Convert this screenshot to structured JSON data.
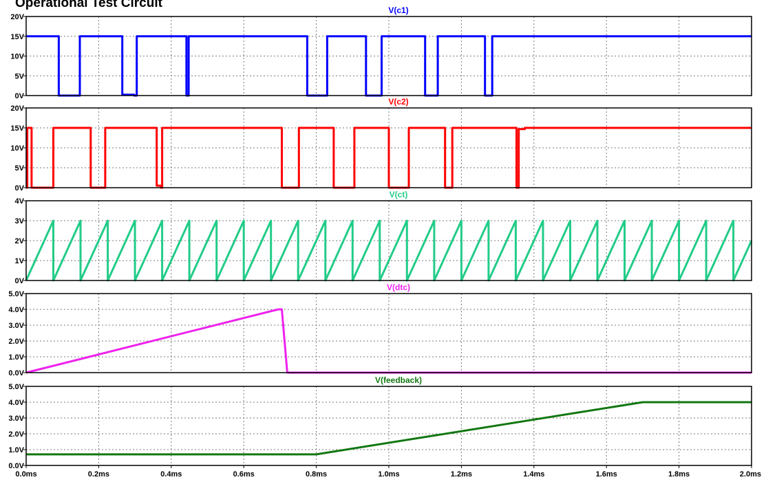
{
  "title": "Operational Test Circuit",
  "colors": {
    "c1": "#0000ff",
    "c2": "#ff0000",
    "ct": "#22cc88",
    "dtc": "#ee22ee",
    "feedback": "#117711"
  },
  "chart_data": [
    {
      "type": "line",
      "id": "c1",
      "title": "V(c1)",
      "ylim": [
        0,
        20
      ],
      "yticks": [
        {
          "v": 0,
          "label": "0V"
        },
        {
          "v": 5,
          "label": "5V"
        },
        {
          "v": 10,
          "label": "10V"
        },
        {
          "v": 15,
          "label": "15V"
        },
        {
          "v": 20,
          "label": "20V"
        }
      ],
      "series": [
        {
          "color": "#0000ff",
          "points": [
            [
              0,
              15
            ],
            [
              0.09,
              15
            ],
            [
              0.09,
              0
            ],
            [
              0.148,
              0
            ],
            [
              0.148,
              15
            ],
            [
              0.265,
              15
            ],
            [
              0.265,
              0.2
            ],
            [
              0.298,
              0.2
            ],
            [
              0.298,
              0
            ],
            [
              0.305,
              0
            ],
            [
              0.305,
              15
            ],
            [
              0.442,
              15
            ],
            [
              0.442,
              0
            ],
            [
              0.448,
              0
            ],
            [
              0.448,
              15
            ],
            [
              0.775,
              15
            ],
            [
              0.775,
              0
            ],
            [
              0.83,
              0
            ],
            [
              0.83,
              15
            ],
            [
              0.937,
              15
            ],
            [
              0.937,
              0
            ],
            [
              0.98,
              0
            ],
            [
              0.98,
              15
            ],
            [
              1.1,
              15
            ],
            [
              1.1,
              0
            ],
            [
              1.135,
              0
            ],
            [
              1.135,
              15
            ],
            [
              1.265,
              15
            ],
            [
              1.265,
              0
            ],
            [
              1.285,
              0
            ],
            [
              1.285,
              15
            ],
            [
              2.0,
              15
            ]
          ]
        }
      ]
    },
    {
      "type": "line",
      "id": "c2",
      "title": "V(c2)",
      "ylim": [
        0,
        20
      ],
      "yticks": [
        {
          "v": 0,
          "label": "0V"
        },
        {
          "v": 5,
          "label": "5V"
        },
        {
          "v": 10,
          "label": "10V"
        },
        {
          "v": 15,
          "label": "15V"
        },
        {
          "v": 20,
          "label": "20V"
        }
      ],
      "series": [
        {
          "color": "#ff0000",
          "points": [
            [
              0,
              0
            ],
            [
              0.003,
              0
            ],
            [
              0.003,
              15
            ],
            [
              0.015,
              15
            ],
            [
              0.015,
              0
            ],
            [
              0.075,
              0
            ],
            [
              0.075,
              15
            ],
            [
              0.178,
              15
            ],
            [
              0.178,
              0
            ],
            [
              0.218,
              0
            ],
            [
              0.218,
              15
            ],
            [
              0.36,
              15
            ],
            [
              0.36,
              0.5
            ],
            [
              0.372,
              0.5
            ],
            [
              0.372,
              0
            ],
            [
              0.375,
              0
            ],
            [
              0.375,
              15
            ],
            [
              0.705,
              15
            ],
            [
              0.705,
              0
            ],
            [
              0.752,
              0
            ],
            [
              0.752,
              15
            ],
            [
              0.848,
              15
            ],
            [
              0.848,
              0
            ],
            [
              0.905,
              0
            ],
            [
              0.905,
              15
            ],
            [
              1.0,
              15
            ],
            [
              1.0,
              0
            ],
            [
              1.055,
              0
            ],
            [
              1.055,
              15
            ],
            [
              1.155,
              15
            ],
            [
              1.155,
              0
            ],
            [
              1.175,
              0
            ],
            [
              1.175,
              15
            ],
            [
              1.352,
              15
            ],
            [
              1.352,
              0
            ],
            [
              1.358,
              0
            ],
            [
              1.358,
              14.7
            ],
            [
              1.375,
              14.7
            ],
            [
              1.375,
              15
            ],
            [
              2.0,
              15
            ]
          ]
        }
      ]
    },
    {
      "type": "line",
      "id": "ct",
      "title": "V(ct)",
      "ylim": [
        0,
        4
      ],
      "sawtooth_period": 0.075,
      "yticks": [
        {
          "v": 0,
          "label": "0V"
        },
        {
          "v": 1,
          "label": "1V"
        },
        {
          "v": 2,
          "label": "2V"
        },
        {
          "v": 3,
          "label": "3V"
        },
        {
          "v": 4,
          "label": "4V"
        }
      ],
      "series": [
        {
          "color": "#22cc88",
          "points": []
        }
      ]
    },
    {
      "type": "line",
      "id": "dtc",
      "title": "V(dtc)",
      "ylim": [
        0,
        5
      ],
      "yticks": [
        {
          "v": 0,
          "label": "0.0V"
        },
        {
          "v": 1,
          "label": "1.0V"
        },
        {
          "v": 2,
          "label": "2.0V"
        },
        {
          "v": 3,
          "label": "3.0V"
        },
        {
          "v": 4,
          "label": "4.0V"
        },
        {
          "v": 5,
          "label": "5.0V"
        }
      ],
      "series": [
        {
          "color": "#ee22ee",
          "points": [
            [
              0,
              0
            ],
            [
              0.695,
              4.0
            ],
            [
              0.705,
              4.0
            ],
            [
              0.72,
              0
            ],
            [
              2.0,
              0
            ]
          ]
        }
      ]
    },
    {
      "type": "line",
      "id": "feedback",
      "title": "V(feedback)",
      "ylim": [
        0,
        5
      ],
      "yticks": [
        {
          "v": 0,
          "label": "0.0V"
        },
        {
          "v": 1,
          "label": "1.0V"
        },
        {
          "v": 2,
          "label": "2.0V"
        },
        {
          "v": 3,
          "label": "3.0V"
        },
        {
          "v": 4,
          "label": "4.0V"
        },
        {
          "v": 5,
          "label": "5.0V"
        }
      ],
      "series": [
        {
          "color": "#117711",
          "points": [
            [
              0,
              0.7
            ],
            [
              0.8,
              0.7
            ],
            [
              1.7,
              4.0
            ],
            [
              2.0,
              4.0
            ]
          ]
        }
      ]
    }
  ],
  "xaxis": {
    "xlim": [
      0,
      2.0
    ],
    "ticks": [
      {
        "v": 0,
        "label": "0.0ms"
      },
      {
        "v": 0.2,
        "label": "0.2ms"
      },
      {
        "v": 0.4,
        "label": "0.4ms"
      },
      {
        "v": 0.6,
        "label": "0.6ms"
      },
      {
        "v": 0.8,
        "label": "0.8ms"
      },
      {
        "v": 1.0,
        "label": "1.0ms"
      },
      {
        "v": 1.2,
        "label": "1.2ms"
      },
      {
        "v": 1.4,
        "label": "1.4ms"
      },
      {
        "v": 1.6,
        "label": "1.6ms"
      },
      {
        "v": 1.8,
        "label": "1.8ms"
      },
      {
        "v": 2.0,
        "label": "2.0ms"
      }
    ]
  }
}
